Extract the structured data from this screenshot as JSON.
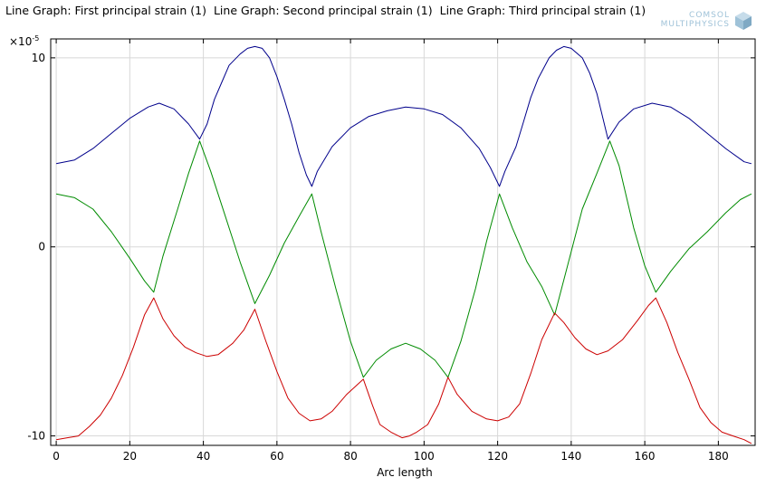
{
  "header": {
    "titles": [
      "Line Graph: First principal strain (1)",
      "Line Graph: Second principal strain (1)",
      "Line Graph: Third principal strain (1)"
    ],
    "logo_line1": "COMSOL",
    "logo_line2": "MULTIPHYSICS"
  },
  "colors": {
    "series1": "#00008b",
    "series2": "#008b00",
    "series3": "#cc0000",
    "grid": "#d8d8d8",
    "logo": "#9fc2d8"
  },
  "chart_data": {
    "type": "line",
    "title": "",
    "xlabel": "Arc length",
    "ylabel": "",
    "y_exponent_label": "×10",
    "y_exponent": "-5",
    "xlim": [
      -1.5,
      190
    ],
    "ylim": [
      -10.5,
      11
    ],
    "grid": true,
    "xticks": [
      0,
      20,
      40,
      60,
      80,
      100,
      120,
      140,
      160,
      180
    ],
    "yticks": [
      -10,
      0,
      10
    ],
    "series": [
      {
        "color": "#00008b",
        "x": [
          0,
          5,
          10,
          15,
          20,
          25,
          28,
          32,
          36,
          39,
          41,
          43,
          45,
          47,
          50,
          52,
          54,
          56,
          58,
          60,
          62,
          64,
          66,
          68,
          69.5,
          71,
          75,
          80,
          85,
          90,
          95,
          100,
          105,
          110,
          115,
          118,
          120.5,
          122,
          125,
          127,
          129,
          131,
          134,
          136,
          138,
          140,
          143,
          145,
          147,
          150,
          153,
          157,
          162,
          167,
          172,
          177,
          182,
          187,
          189
        ],
        "y": [
          4.4,
          4.6,
          5.2,
          6.0,
          6.8,
          7.4,
          7.6,
          7.3,
          6.5,
          5.7,
          6.5,
          7.8,
          8.7,
          9.6,
          10.2,
          10.5,
          10.6,
          10.5,
          10.0,
          9.0,
          7.8,
          6.5,
          5.0,
          3.8,
          3.2,
          4.0,
          5.3,
          6.3,
          6.9,
          7.2,
          7.4,
          7.3,
          7.0,
          6.3,
          5.2,
          4.2,
          3.2,
          4.0,
          5.3,
          6.6,
          7.9,
          8.9,
          10.0,
          10.4,
          10.6,
          10.5,
          10.0,
          9.2,
          8.1,
          5.7,
          6.6,
          7.3,
          7.6,
          7.4,
          6.8,
          6.0,
          5.2,
          4.5,
          4.4
        ]
      },
      {
        "color": "#008b00",
        "x": [
          0,
          5,
          10,
          15,
          20,
          24,
          26.5,
          29,
          33,
          36,
          39,
          42,
          46,
          50,
          54,
          58,
          62,
          66,
          69.5,
          72,
          76,
          80,
          83.5,
          87,
          91,
          95,
          99,
          103,
          106.5,
          110,
          114,
          117,
          120.5,
          124,
          128,
          132,
          135.5,
          139,
          143,
          147,
          150.5,
          153,
          157,
          160,
          163,
          167,
          172,
          177,
          182,
          186,
          189
        ],
        "y": [
          2.8,
          2.6,
          2.0,
          0.8,
          -0.6,
          -1.8,
          -2.4,
          -0.5,
          2.0,
          3.9,
          5.6,
          4.0,
          1.6,
          -0.8,
          -3.0,
          -1.5,
          0.2,
          1.6,
          2.8,
          0.8,
          -2.2,
          -5.0,
          -6.9,
          -6.0,
          -5.4,
          -5.1,
          -5.4,
          -6.0,
          -6.9,
          -5.0,
          -2.2,
          0.3,
          2.8,
          1.0,
          -0.8,
          -2.1,
          -3.6,
          -1.0,
          2.0,
          3.9,
          5.6,
          4.3,
          1.0,
          -1.0,
          -2.4,
          -1.3,
          -0.1,
          0.8,
          1.8,
          2.5,
          2.8
        ]
      },
      {
        "color": "#cc0000",
        "x": [
          0,
          3,
          6,
          9,
          12,
          15,
          18,
          21,
          24,
          26.5,
          29,
          32,
          35,
          38,
          41,
          44,
          48,
          51,
          54,
          57,
          60,
          63,
          66,
          69,
          72,
          75,
          79,
          83.5,
          86,
          88,
          91,
          94,
          96,
          98,
          101,
          104,
          106.5,
          109,
          113,
          117,
          120,
          123,
          126,
          129,
          132,
          135.5,
          138,
          141,
          144,
          147,
          150,
          154,
          158,
          161,
          163,
          166,
          169,
          172,
          175,
          178,
          181,
          184,
          187,
          189
        ],
        "y": [
          -10.2,
          -10.1,
          -10.0,
          -9.5,
          -8.9,
          -8.0,
          -6.8,
          -5.3,
          -3.6,
          -2.7,
          -3.8,
          -4.7,
          -5.3,
          -5.6,
          -5.8,
          -5.7,
          -5.1,
          -4.4,
          -3.3,
          -5.0,
          -6.6,
          -8.0,
          -8.8,
          -9.2,
          -9.1,
          -8.7,
          -7.8,
          -7.0,
          -8.4,
          -9.4,
          -9.8,
          -10.1,
          -10.0,
          -9.8,
          -9.4,
          -8.3,
          -6.9,
          -7.8,
          -8.7,
          -9.1,
          -9.2,
          -9.0,
          -8.3,
          -6.7,
          -4.9,
          -3.5,
          -4.0,
          -4.8,
          -5.4,
          -5.7,
          -5.5,
          -4.9,
          -3.9,
          -3.1,
          -2.7,
          -4.0,
          -5.6,
          -7.0,
          -8.5,
          -9.3,
          -9.8,
          -10.0,
          -10.2,
          -10.4
        ]
      }
    ]
  }
}
